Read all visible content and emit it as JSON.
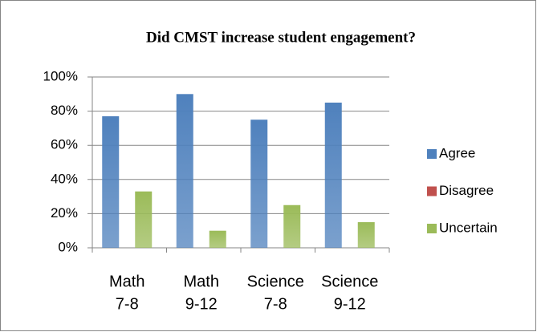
{
  "chart_data": {
    "type": "bar",
    "title": "Did CMST increase student engagement?",
    "categories": [
      [
        "Math",
        "7-8"
      ],
      [
        "Math",
        "9-12"
      ],
      [
        "Science",
        "7-8"
      ],
      [
        "Science",
        "9-12"
      ]
    ],
    "series": [
      {
        "name": "Agree",
        "color": "#4f81bd",
        "values": [
          77,
          90,
          75,
          85
        ]
      },
      {
        "name": "Disagree",
        "color": "#c0504d",
        "values": [
          0,
          0,
          0,
          0
        ]
      },
      {
        "name": "Uncertain",
        "color": "#9bbb59",
        "values": [
          33,
          10,
          25,
          15
        ]
      }
    ],
    "ylim": [
      0,
      100
    ],
    "yticks": [
      {
        "value": 0,
        "label": "0%"
      },
      {
        "value": 20,
        "label": "20%"
      },
      {
        "value": 40,
        "label": "40%"
      },
      {
        "value": 60,
        "label": "60%"
      },
      {
        "value": 80,
        "label": "80%"
      },
      {
        "value": 100,
        "label": "100%"
      }
    ],
    "grid": true,
    "legend": "right"
  }
}
